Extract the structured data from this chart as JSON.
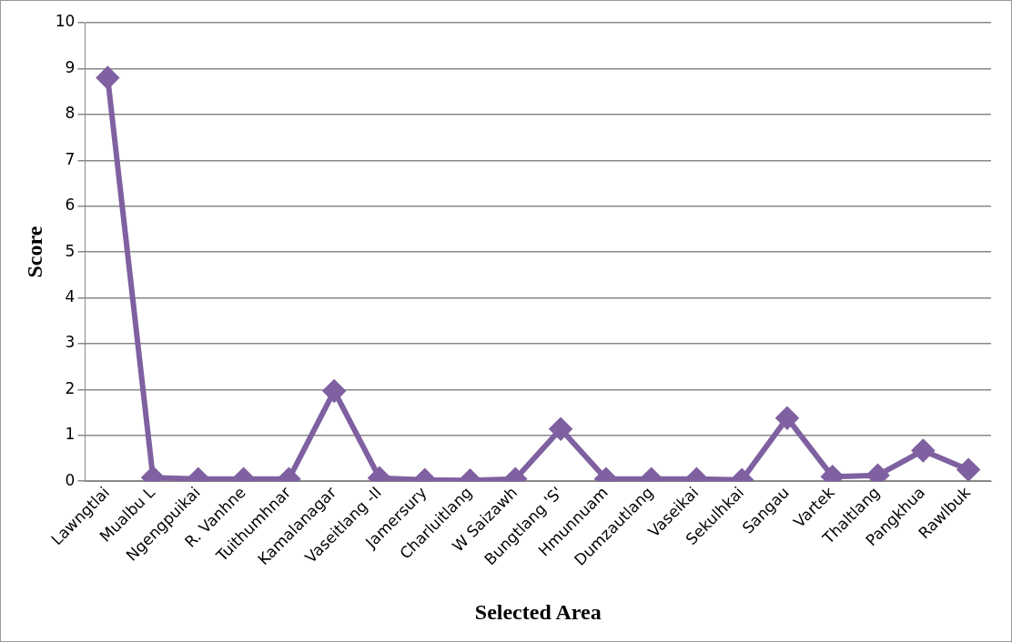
{
  "chart_data": {
    "type": "line",
    "xlabel": "Selected Area",
    "ylabel": "Score",
    "categories": [
      "Lawngtlai",
      "Mualbu L",
      "Ngengpuikai",
      "R. Vanhne",
      "Tuithumhnar",
      "Kamalanagar",
      "Vaseitlang -II",
      "Jamersury",
      "Charluitlang",
      "W Saizawh",
      "Bungtlang 'S'",
      "Hmunnuam",
      "Dumzautlang",
      "Vaseikai",
      "Sekulhkai",
      "Sangau",
      "Vartek",
      "Thaltlang",
      "Pangkhua",
      "Rawlbuk"
    ],
    "series": [
      {
        "color": "#7f60a0",
        "values": [
          8.8,
          0.08,
          0.05,
          0.05,
          0.05,
          1.97,
          0.07,
          0.03,
          0.02,
          0.05,
          1.14,
          0.05,
          0.05,
          0.05,
          0.03,
          1.38,
          0.1,
          0.13,
          0.67,
          0.25
        ]
      }
    ],
    "ylim": [
      0,
      10
    ],
    "yticks": [
      0,
      1,
      2,
      3,
      4,
      5,
      6,
      7,
      8,
      9,
      10
    ],
    "grid": "y",
    "marker": "diamond",
    "line_style": "solid",
    "legend": false
  }
}
